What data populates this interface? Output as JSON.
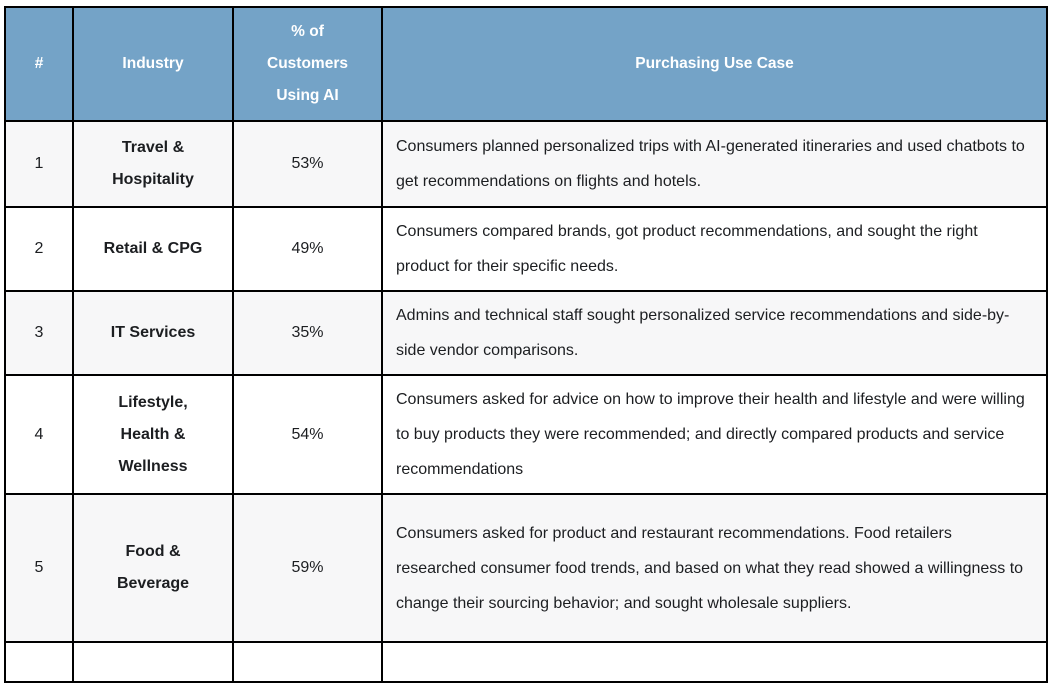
{
  "table": {
    "columns": {
      "num": "#",
      "industry": "Industry",
      "pct": "% of Customers Using AI",
      "use_case": "Purchasing Use Case"
    },
    "rows": [
      {
        "num": "1",
        "industry": "Travel & Hospitality",
        "pct": "53%",
        "use_case": "Consumers planned personalized trips with AI-generated itineraries and used chatbots to get recommendations on flights and hotels."
      },
      {
        "num": "2",
        "industry": "Retail & CPG",
        "pct": "49%",
        "use_case": "Consumers compared brands, got product recommendations, and sought the right product for their specific needs."
      },
      {
        "num": "3",
        "industry": "IT Services",
        "pct": "35%",
        "use_case": "Admins and technical staff sought personalized service recommendations and side-by-side vendor comparisons."
      },
      {
        "num": "4",
        "industry": "Lifestyle, Health & Wellness",
        "pct": "54%",
        "use_case": "Consumers asked for advice on how to improve their health and lifestyle and were willing to buy products they were recommended; and directly compared products and service recommendations"
      },
      {
        "num": "5",
        "industry": "Food & Beverage",
        "pct": "59%",
        "use_case": "Consumers asked for product and restaurant recommendations. Food retailers researched consumer food trends, and based on what they read showed a willingness to change their sourcing behavior; and sought wholesale suppliers."
      }
    ],
    "colors": {
      "header_bg": "#74a3c7",
      "header_text": "#ffffff",
      "row_bg": "#ffffff",
      "row_alt_bg": "#f7f7f8",
      "border": "#000000",
      "body_text": "#1c1e21"
    }
  }
}
